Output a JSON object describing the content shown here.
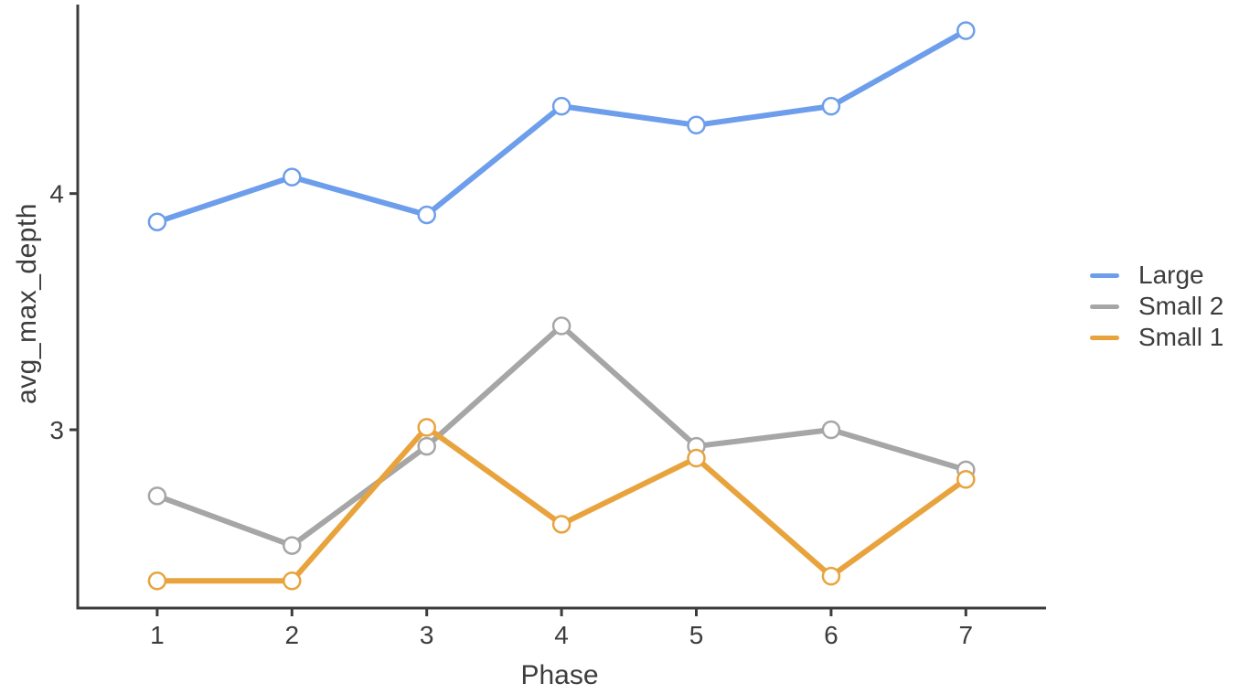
{
  "chart_data": {
    "type": "line",
    "title": "",
    "xlabel": "Phase",
    "ylabel": "avg_max_depth",
    "x": [
      1,
      2,
      3,
      4,
      5,
      6,
      7
    ],
    "x_tick_labels": [
      "1",
      "2",
      "3",
      "4",
      "5",
      "6",
      "7"
    ],
    "y_ticks": [
      3,
      4
    ],
    "y_tick_labels": [
      "3",
      "4"
    ],
    "xlim": [
      0.41,
      7.6
    ],
    "ylim": [
      2.25,
      4.8
    ],
    "grid": false,
    "marker": "open-circle",
    "legend_position": "right",
    "series": [
      {
        "name": "Large",
        "color": "#6d9eeb",
        "values": [
          3.88,
          4.07,
          3.91,
          4.37,
          4.29,
          4.37,
          4.69
        ]
      },
      {
        "name": "Small 2",
        "color": "#a6a6a6",
        "values": [
          2.72,
          2.51,
          2.93,
          3.44,
          2.93,
          3.0,
          2.83
        ]
      },
      {
        "name": "Small 1",
        "color": "#e8a33d",
        "values": [
          2.36,
          2.36,
          3.01,
          2.6,
          2.88,
          2.38,
          2.79
        ]
      }
    ],
    "axis_color": "#3c3c3c",
    "text_color": "#3d3d3d"
  }
}
